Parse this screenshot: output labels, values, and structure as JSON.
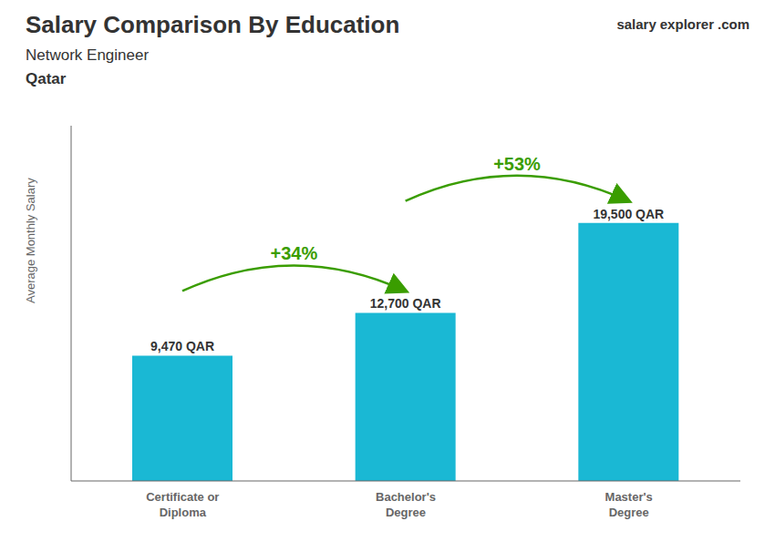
{
  "chart_data": {
    "type": "bar",
    "title": "Salary Comparison By Education",
    "subtitle": "Network Engineer",
    "y_label": "Average Monthly Salary",
    "categories": [
      "Certificate or\nDiploma",
      "Bachelor's\nDegree",
      "Master's\nDegree"
    ],
    "values": [
      9470,
      12700,
      19500
    ],
    "value_labels": [
      "9,470 QAR",
      "12,700 QAR",
      "19,500 QAR"
    ],
    "data_labels": true,
    "color": "#1ab8d4",
    "ylim": [
      0,
      26840
    ],
    "tick_labels": "x",
    "annotations": [
      "+34%",
      "+53%",
      "Qatar",
      "salary",
      "explorer",
      ".com"
    ]
  }
}
